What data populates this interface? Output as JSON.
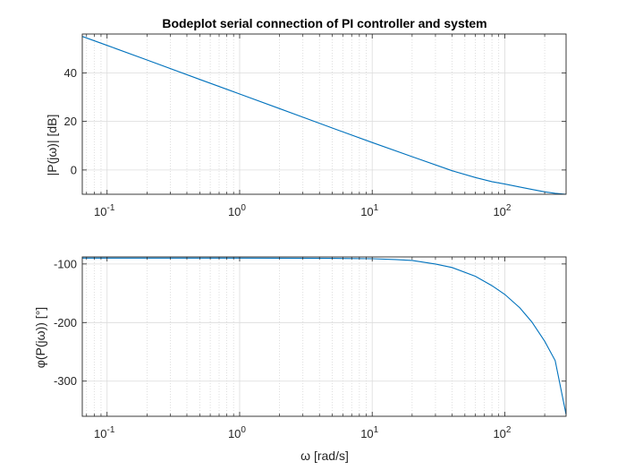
{
  "chart_data": {
    "title": "Bodeplot serial connection of PI controller and system",
    "xlabel": "ω [rad/s]",
    "x_scale": "log",
    "grid": true,
    "series_color": "#0072BD",
    "panels": [
      {
        "type": "line",
        "ylabel": "|P(jω)| [dB]",
        "xlim": [
          0.065,
          290
        ],
        "ylim": [
          -10,
          56
        ],
        "y_ticks": [
          0,
          20,
          40
        ],
        "x_ticks": [
          {
            "value": 0.1,
            "base": "10",
            "exp": "-1"
          },
          {
            "value": 1,
            "base": "10",
            "exp": "0"
          },
          {
            "value": 10,
            "base": "10",
            "exp": "1"
          },
          {
            "value": 100,
            "base": "10",
            "exp": "2"
          }
        ],
        "series": [
          {
            "x": [
              0.065,
              0.1,
              0.2,
              0.5,
              1,
              2,
              5,
              10,
              20,
              40,
              60,
              80,
              100,
              130,
              160,
              200,
              240,
              290
            ],
            "y": [
              55.0,
              51.3,
              45.3,
              37.3,
              31.3,
              25.3,
              17.3,
              11.3,
              5.5,
              -0.3,
              -3.1,
              -4.8,
              -5.8,
              -7.0,
              -8.0,
              -9.0,
              -9.6,
              -10.0
            ]
          }
        ]
      },
      {
        "type": "line",
        "ylabel": "φ(P(jω)) [°]",
        "xlim": [
          0.065,
          290
        ],
        "ylim": [
          -360,
          -88
        ],
        "y_ticks": [
          -100,
          -200,
          -300
        ],
        "x_ticks": [
          {
            "value": 0.1,
            "base": "10",
            "exp": "-1"
          },
          {
            "value": 1,
            "base": "10",
            "exp": "0"
          },
          {
            "value": 10,
            "base": "10",
            "exp": "1"
          },
          {
            "value": 100,
            "base": "10",
            "exp": "2"
          }
        ],
        "series": [
          {
            "x": [
              0.065,
              0.5,
              1,
              5,
              10,
              15,
              20,
              30,
              40,
              60,
              80,
              100,
              130,
              160,
              200,
              240,
              290
            ],
            "y": [
              -90,
              -90,
              -90,
              -90.5,
              -91,
              -92.5,
              -94,
              -100,
              -106,
              -121,
              -137,
              -152,
              -175,
              -199,
              -232,
              -265,
              -357
            ]
          }
        ]
      }
    ]
  }
}
